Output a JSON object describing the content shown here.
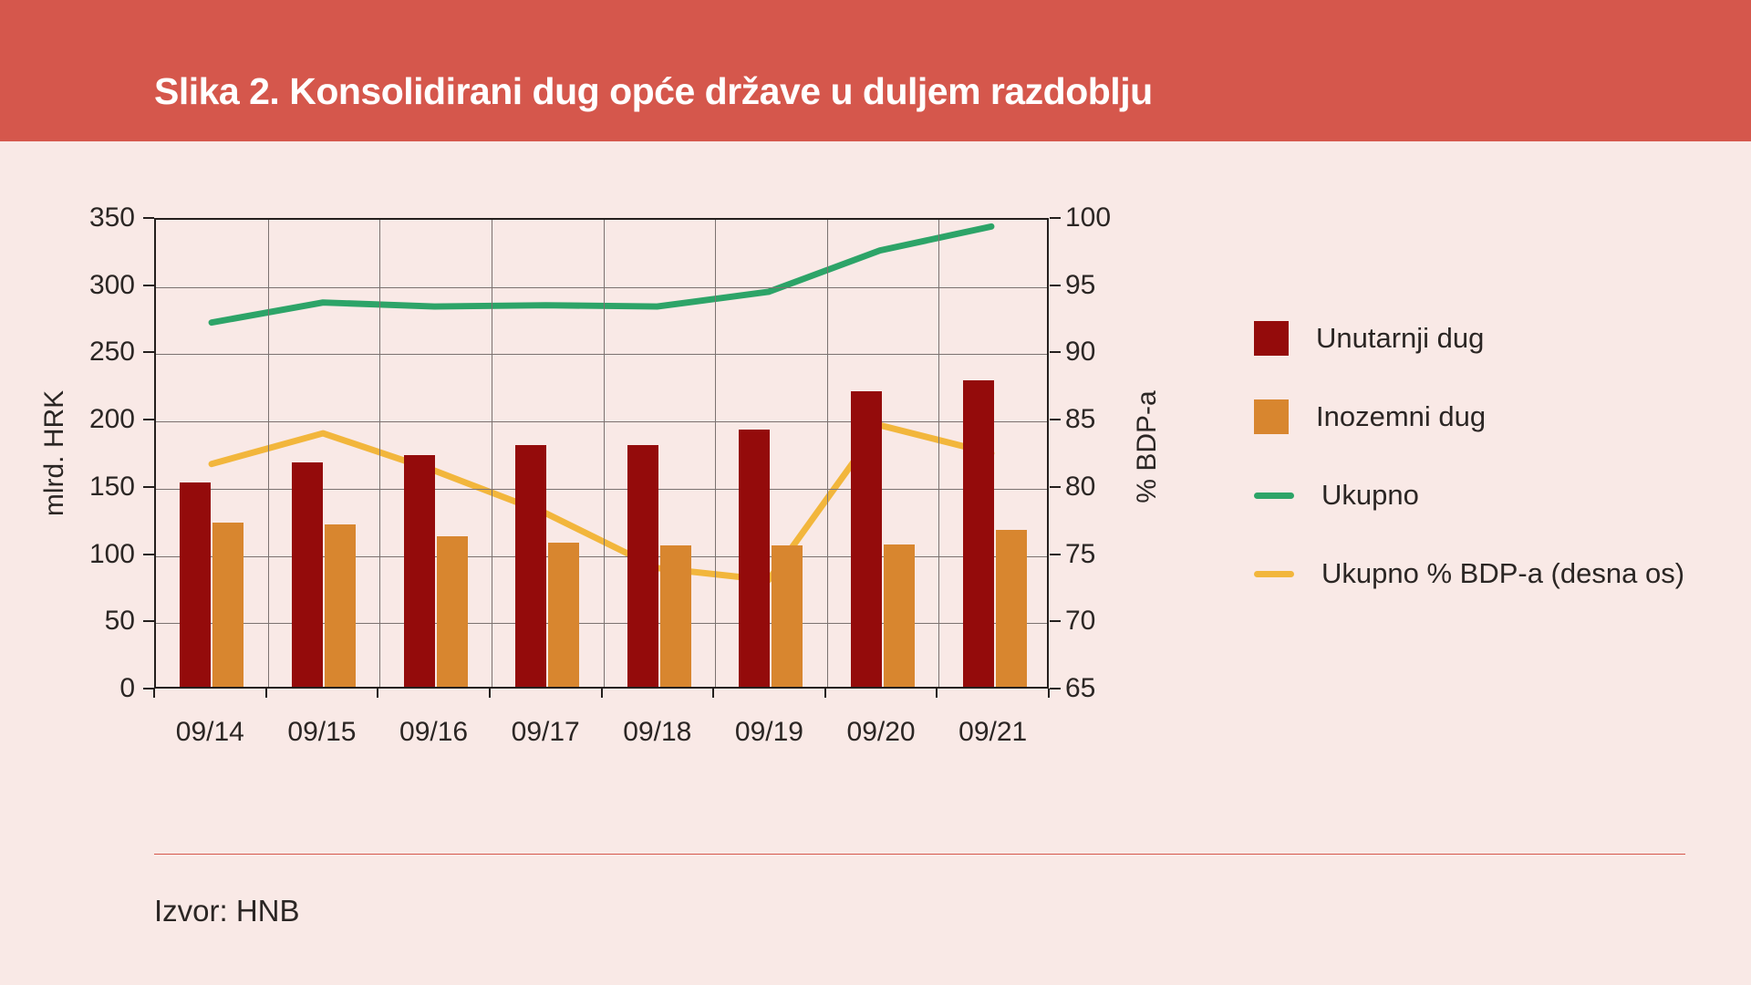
{
  "header": {
    "title": "Slika 2. Konsolidirani dug opće države u duljem razdoblju"
  },
  "footer": {
    "source": "Izvor: HNB"
  },
  "colors": {
    "header_background": "#d5574c",
    "page_background": "#f9e9e6",
    "bar_unutarnji": "#940b0b",
    "bar_inozemni": "#d8862f",
    "line_ukupno": "#2da468",
    "line_ukupno_pct": "#f2b63c",
    "gridline": "#7b7270",
    "axis_border": "#241f1d",
    "text": "#2b2624",
    "title_text": "#ffffff",
    "divider": "#d5574c"
  },
  "chart_data": {
    "type": "bar",
    "subtype": "grouped bars with two overlay lines",
    "categories": [
      "09/14",
      "09/15",
      "09/16",
      "09/17",
      "09/18",
      "09/19",
      "09/20",
      "09/21"
    ],
    "series": [
      {
        "name": "Unutarnji dug",
        "type": "bar",
        "axis": "left",
        "color": "#940b0b",
        "values": [
          152,
          167,
          172,
          180,
          180,
          191,
          220,
          228
        ]
      },
      {
        "name": "Inozemni dug",
        "type": "bar",
        "axis": "left",
        "color": "#d8862f",
        "values": [
          122,
          121,
          112,
          107,
          105,
          105,
          106,
          117
        ]
      },
      {
        "name": "Ukupno",
        "type": "line",
        "axis": "left",
        "color": "#2da468",
        "values": [
          273,
          288,
          285,
          286,
          285,
          296,
          327,
          345
        ]
      },
      {
        "name": "Ukupno % BDP-a (desna os)",
        "type": "line",
        "axis": "right",
        "color": "#f2b63c",
        "values": [
          81.7,
          84.0,
          81.2,
          78.0,
          73.9,
          73.0,
          84.6,
          82.5
        ]
      }
    ],
    "left_axis": {
      "label": "mlrd. HRK",
      "min": 0,
      "max": 350,
      "step": 50,
      "tick_labels": [
        "350",
        "300",
        "250",
        "200",
        "150",
        "100",
        "50",
        "0"
      ]
    },
    "right_axis": {
      "label": "% BDP-a",
      "min": 65,
      "max": 100,
      "step": 5,
      "tick_labels": [
        "100",
        "95",
        "90",
        "85",
        "80",
        "75",
        "70",
        "65"
      ]
    },
    "grid": true,
    "legend_position": "right"
  }
}
